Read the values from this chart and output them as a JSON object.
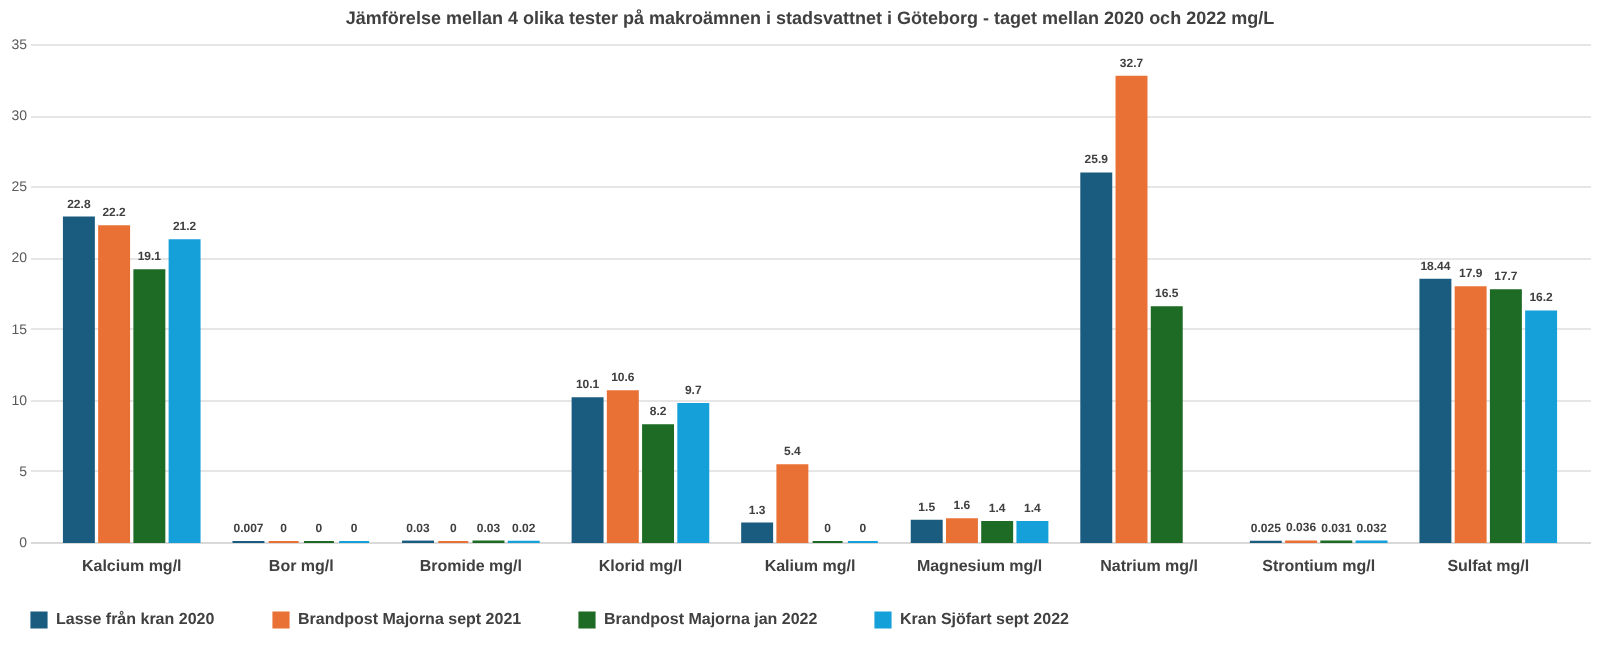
{
  "chart_data": {
    "type": "bar",
    "title": "Jämförelse mellan 4 olika tester på makroämnen i stadsvattnet i Göteborg - taget mellan 2020 och 2022 mg/L",
    "categories": [
      "Kalcium mg/l",
      "Bor mg/l",
      "Bromide mg/l",
      "Klorid mg/l",
      "Kalium mg/l",
      "Magnesium mg/l",
      "Natrium mg/l",
      "Strontium mg/l",
      "Sulfat mg/l"
    ],
    "series": [
      {
        "name": "Lasse från kran 2020",
        "color": "#1a5c80",
        "values": [
          22.8,
          0.007,
          0.03,
          10.1,
          1.3,
          1.5,
          25.9,
          0.025,
          18.44
        ]
      },
      {
        "name": "Brandpost Majorna sept 2021",
        "color": "#ea7135",
        "values": [
          22.2,
          0,
          0,
          10.6,
          5.4,
          1.6,
          32.7,
          0.036,
          17.9
        ]
      },
      {
        "name": "Brandpost Majorna jan 2022",
        "color": "#1d6b24",
        "values": [
          19.1,
          0,
          0.03,
          8.2,
          0,
          1.4,
          16.5,
          0.031,
          17.7
        ]
      },
      {
        "name": "Kran Sjöfart sept 2022",
        "color": "#15a0d9",
        "values": [
          21.2,
          0,
          0.02,
          9.7,
          0,
          1.4,
          null,
          0.032,
          16.2
        ]
      }
    ],
    "ylim": [
      0,
      35
    ],
    "yticks": [
      0,
      5,
      10,
      15,
      20,
      25,
      30,
      35
    ],
    "grid": "y",
    "legend": "bottom",
    "data_labels": true
  }
}
